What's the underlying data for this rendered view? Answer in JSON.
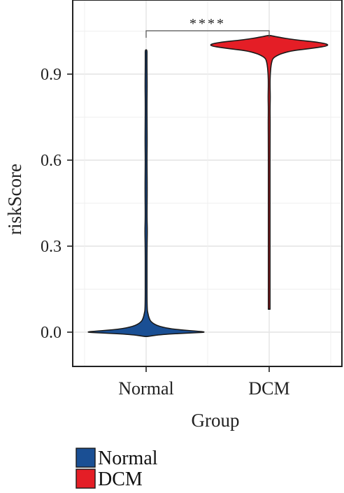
{
  "chart_data": {
    "type": "violin",
    "xlabel": "Group",
    "ylabel": "riskScore",
    "categories": [
      "Normal",
      "DCM"
    ],
    "ylim": [
      -0.13,
      1.08
    ],
    "yticks": [
      0.0,
      0.3,
      0.6,
      0.9
    ],
    "ytick_labels": [
      "0.0",
      "0.3",
      "0.6",
      "0.9"
    ],
    "grid": true,
    "series": [
      {
        "name": "Normal",
        "color": "#1a4f94",
        "range": [
          -0.015,
          0.985
        ],
        "density_profile": [
          [
            -0.015,
            0.02
          ],
          [
            -0.008,
            0.25
          ],
          [
            -0.003,
            0.7
          ],
          [
            0.0,
            1.0
          ],
          [
            0.004,
            0.8
          ],
          [
            0.01,
            0.45
          ],
          [
            0.02,
            0.2
          ],
          [
            0.035,
            0.08
          ],
          [
            0.05,
            0.045
          ],
          [
            0.065,
            0.03
          ],
          [
            0.08,
            0.015
          ],
          [
            0.2,
            0.013
          ],
          [
            0.3,
            0.015
          ],
          [
            0.355,
            0.02
          ],
          [
            0.4,
            0.013
          ],
          [
            0.5,
            0.018
          ],
          [
            0.6,
            0.012
          ],
          [
            0.66,
            0.017
          ],
          [
            0.73,
            0.015
          ],
          [
            0.8,
            0.01
          ],
          [
            0.86,
            0.017
          ],
          [
            0.93,
            0.01
          ],
          [
            0.97,
            0.014
          ],
          [
            0.985,
            0.005
          ]
        ]
      },
      {
        "name": "DCM",
        "color": "#e41e26",
        "range": [
          0.08,
          1.035
        ],
        "density_profile": [
          [
            0.08,
            0.004
          ],
          [
            0.15,
            0.007
          ],
          [
            0.25,
            0.008
          ],
          [
            0.35,
            0.01
          ],
          [
            0.45,
            0.008
          ],
          [
            0.55,
            0.009
          ],
          [
            0.65,
            0.01
          ],
          [
            0.73,
            0.016
          ],
          [
            0.78,
            0.01
          ],
          [
            0.82,
            0.018
          ],
          [
            0.86,
            0.012
          ],
          [
            0.9,
            0.016
          ],
          [
            0.94,
            0.035
          ],
          [
            0.96,
            0.07
          ],
          [
            0.98,
            0.3
          ],
          [
            0.99,
            0.7
          ],
          [
            1.0,
            1.0
          ],
          [
            1.01,
            0.85
          ],
          [
            1.02,
            0.4
          ],
          [
            1.03,
            0.12
          ],
          [
            1.035,
            0.02
          ]
        ]
      }
    ],
    "annotation": {
      "text": "****",
      "between": [
        "Normal",
        "DCM"
      ],
      "y": 1.05
    },
    "legend": {
      "placement": "bottom-left",
      "entries": [
        "Normal",
        "DCM"
      ]
    }
  }
}
